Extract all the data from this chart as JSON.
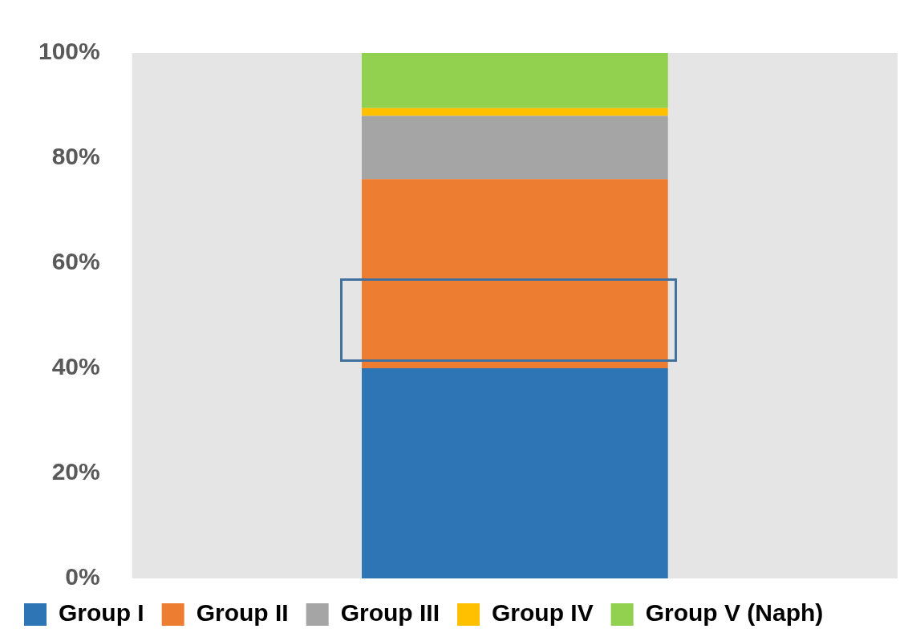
{
  "chart_data": {
    "type": "bar",
    "stacked": true,
    "categories": [
      null
    ],
    "series": [
      {
        "name": "Group I",
        "color": "#2e75b6",
        "values": [
          40
        ]
      },
      {
        "name": "Group II",
        "color": "#ed7d31",
        "values": [
          36
        ]
      },
      {
        "name": "Group III",
        "color": "#a5a5a5",
        "values": [
          12
        ]
      },
      {
        "name": "Group IV",
        "color": "#ffc000",
        "values": [
          1.5
        ]
      },
      {
        "name": "Group V (Naph)",
        "color": "#92d050",
        "values": [
          10.5
        ]
      }
    ],
    "ylim": [
      0,
      100
    ],
    "yticks": [
      {
        "value": 0,
        "label": "0%"
      },
      {
        "value": 20,
        "label": "20%"
      },
      {
        "value": 40,
        "label": "40%"
      },
      {
        "value": 60,
        "label": "60%"
      },
      {
        "value": 80,
        "label": "80%"
      },
      {
        "value": 100,
        "label": "100%"
      }
    ],
    "grid": false,
    "legend": "bottom"
  }
}
